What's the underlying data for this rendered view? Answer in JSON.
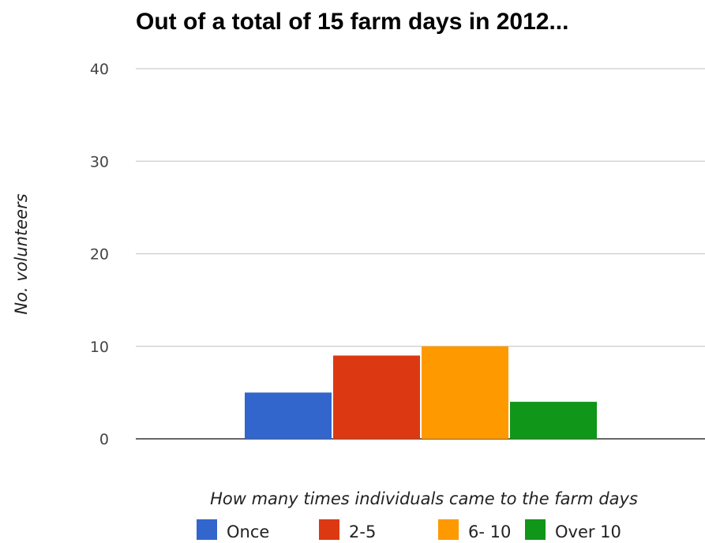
{
  "chart_data": {
    "type": "bar",
    "title": "Out of a total of 15 farm days in 2012...",
    "xlabel": "How many times individuals came to the farm days",
    "ylabel": "No. volunteers",
    "ylim": [
      0,
      40
    ],
    "yticks": [
      0,
      10,
      20,
      30,
      40
    ],
    "grid": true,
    "legend_position": "bottom",
    "series": [
      {
        "name": "Once",
        "values": [
          5
        ],
        "color": "#3366cc"
      },
      {
        "name": "2-5",
        "values": [
          9
        ],
        "color": "#dc3912"
      },
      {
        "name": "6- 10",
        "values": [
          10
        ],
        "color": "#ff9900"
      },
      {
        "name": "Over 10",
        "values": [
          4
        ],
        "color": "#109618"
      }
    ]
  }
}
